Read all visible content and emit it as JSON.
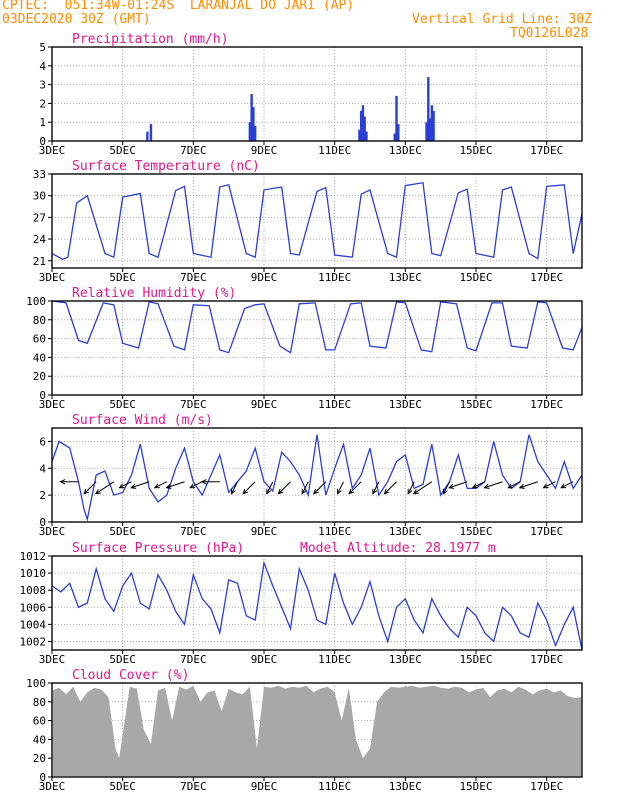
{
  "header": {
    "line1": "CPTEC:  051:34W-01:24S  LARANJAL DO JARI (AP)",
    "line2": "03DEC2020 30Z (GMT)",
    "grid_note": "Vertical Grid Line: 30Z",
    "code": "TQ0126L028"
  },
  "colors": {
    "header": "#ff8c00",
    "panel_title": "#e0198c",
    "line": "#2a3fd6",
    "bar": "#2a3fd6",
    "cloud": "#a8a8a8",
    "grid": "#9a9a9a",
    "arrow": "#000000"
  },
  "x_tick_labels": [
    "3DEC",
    "5DEC",
    "7DEC",
    "9DEC",
    "11DEC",
    "13DEC",
    "15DEC",
    "17DEC"
  ],
  "chart_data": [
    {
      "type": "bar",
      "title": "Precipitation (mm/h)",
      "ylim": [
        0,
        5
      ],
      "yticks": [
        0,
        1,
        2,
        3,
        4,
        5
      ],
      "grid": true,
      "x": [
        5.7,
        5.8,
        8.6,
        8.65,
        8.7,
        8.75,
        11.7,
        11.75,
        11.8,
        11.85,
        11.9,
        12.7,
        12.75,
        12.8,
        13.6,
        13.65,
        13.7,
        13.75,
        13.8
      ],
      "values": [
        0.5,
        0.9,
        1.0,
        2.5,
        1.8,
        0.8,
        0.6,
        1.6,
        1.9,
        1.3,
        0.5,
        0.4,
        2.4,
        0.9,
        1.0,
        3.4,
        1.2,
        1.9,
        1.6
      ]
    },
    {
      "type": "line",
      "title": "Surface Temperature (nC)",
      "ylim": [
        20,
        33
      ],
      "yticks": [
        21,
        24,
        27,
        30,
        33
      ],
      "grid": true,
      "x": [
        3.0,
        3.3,
        3.45,
        3.7,
        4.0,
        4.5,
        4.75,
        5.0,
        5.5,
        5.75,
        6.0,
        6.5,
        6.75,
        7.0,
        7.5,
        7.75,
        8.0,
        8.5,
        8.75,
        9.0,
        9.5,
        9.75,
        10.0,
        10.5,
        10.75,
        11.0,
        11.5,
        11.75,
        12.0,
        12.5,
        12.75,
        13.0,
        13.5,
        13.75,
        14.0,
        14.5,
        14.75,
        15.0,
        15.5,
        15.75,
        16.0,
        16.5,
        16.75,
        17.0,
        17.5,
        17.75,
        18.0
      ],
      "values": [
        22,
        21.2,
        21.5,
        29,
        30,
        22,
        21.5,
        29.8,
        30.3,
        22,
        21.5,
        30.7,
        31.3,
        22,
        21.5,
        31.2,
        31.5,
        22,
        21.5,
        30.8,
        31.2,
        22,
        21.8,
        30.6,
        31.1,
        21.8,
        21.5,
        30.2,
        30.8,
        22,
        21.5,
        31.4,
        31.8,
        22,
        21.7,
        30.4,
        30.9,
        22,
        21.5,
        30.8,
        31.2,
        22,
        21.3,
        31.3,
        31.5,
        22,
        27.5
      ]
    },
    {
      "type": "line",
      "title": "Relative Humidity (%)",
      "ylim": [
        0,
        100
      ],
      "yticks": [
        0,
        20,
        40,
        60,
        80,
        100
      ],
      "grid": true,
      "x": [
        3.0,
        3.4,
        3.75,
        4.0,
        4.45,
        4.75,
        5.0,
        5.45,
        5.75,
        6.0,
        6.45,
        6.75,
        7.0,
        7.45,
        7.75,
        8.0,
        8.45,
        8.75,
        9.0,
        9.45,
        9.75,
        10.0,
        10.45,
        10.75,
        11.0,
        11.45,
        11.75,
        12.0,
        12.45,
        12.75,
        13.0,
        13.45,
        13.75,
        14.0,
        14.45,
        14.75,
        15.0,
        15.45,
        15.75,
        16.0,
        16.45,
        16.75,
        17.0,
        17.45,
        17.75,
        18.0
      ],
      "values": [
        100,
        98,
        58,
        55,
        98,
        96,
        55,
        50,
        99,
        97,
        52,
        48,
        96,
        95,
        48,
        45,
        92,
        96,
        97,
        52,
        45,
        97,
        98,
        48,
        48,
        97,
        98,
        52,
        50,
        99,
        98,
        48,
        46,
        99,
        97,
        50,
        47,
        98,
        98,
        52,
        50,
        99,
        98,
        50,
        48,
        72
      ]
    },
    {
      "type": "line",
      "title": "Surface Wind (m/s)",
      "ylim": [
        0,
        7
      ],
      "yticks": [
        0,
        2,
        4,
        6
      ],
      "grid": true,
      "x": [
        3.0,
        3.2,
        3.5,
        3.75,
        3.9,
        4.0,
        4.25,
        4.5,
        4.75,
        5.0,
        5.25,
        5.5,
        5.75,
        6.0,
        6.25,
        6.5,
        6.75,
        7.0,
        7.25,
        7.5,
        7.75,
        8.0,
        8.25,
        8.5,
        8.75,
        9.0,
        9.25,
        9.5,
        9.75,
        10.0,
        10.25,
        10.5,
        10.75,
        11.0,
        11.25,
        11.5,
        11.75,
        12.0,
        12.25,
        12.5,
        12.75,
        13.0,
        13.25,
        13.5,
        13.75,
        14.0,
        14.25,
        14.5,
        14.75,
        15.0,
        15.25,
        15.5,
        15.75,
        16.0,
        16.25,
        16.5,
        16.75,
        17.0,
        17.25,
        17.5,
        17.75,
        18.0
      ],
      "values": [
        4.5,
        6.0,
        5.5,
        3.0,
        1.0,
        0.2,
        3.5,
        3.8,
        2.0,
        2.2,
        3.5,
        5.8,
        2.5,
        1.5,
        2.0,
        4.0,
        5.5,
        3.0,
        2.0,
        3.5,
        5.0,
        2.2,
        3.0,
        3.8,
        5.5,
        3.0,
        2.3,
        5.2,
        4.5,
        3.5,
        2.0,
        6.5,
        2.0,
        4.0,
        5.8,
        2.5,
        3.5,
        5.5,
        2.0,
        3.0,
        4.5,
        5.0,
        2.5,
        2.8,
        5.8,
        2.0,
        3.0,
        5.0,
        2.5,
        2.5,
        3.0,
        6.0,
        3.5,
        2.5,
        3.0,
        6.5,
        4.5,
        3.5,
        2.5,
        4.5,
        2.5,
        3.5
      ],
      "arrows_x": [
        3.75,
        4.25,
        4.75,
        5.25,
        5.75,
        6.25,
        6.75,
        7.25,
        7.75,
        8.25,
        8.75,
        9.25,
        9.75,
        10.25,
        10.75,
        11.25,
        11.75,
        12.25,
        12.75,
        13.25,
        13.75,
        14.25,
        14.75,
        15.25,
        15.75,
        16.25,
        16.75,
        17.25,
        17.75
      ],
      "arrows_u": [
        -3,
        -2,
        -3,
        -2,
        -3,
        -2,
        -3,
        -2,
        -3,
        -1,
        -2,
        -1,
        -2,
        -1,
        -2,
        -1,
        -2,
        -1,
        -2,
        -1,
        -3,
        -1,
        -3,
        -2,
        -3,
        -2,
        -3,
        -2,
        -2
      ],
      "arrows_v": [
        0,
        -2,
        -2,
        -1,
        -1,
        -1,
        -1,
        -1,
        0,
        -2,
        -2,
        -2,
        -2,
        -2,
        -2,
        -2,
        -2,
        -2,
        -2,
        -2,
        -2,
        -2,
        -1,
        -1,
        -1,
        -1,
        -1,
        -1,
        -1
      ]
    },
    {
      "type": "line",
      "title": "Surface Pressure (hPa)",
      "subtitle": "Model Altitude: 28.1977 m",
      "ylim": [
        1001,
        1012
      ],
      "yticks": [
        1002,
        1004,
        1006,
        1008,
        1010,
        1012
      ],
      "grid": true,
      "x": [
        3.0,
        3.25,
        3.5,
        3.75,
        4.0,
        4.25,
        4.5,
        4.75,
        5.0,
        5.25,
        5.5,
        5.75,
        6.0,
        6.25,
        6.5,
        6.75,
        7.0,
        7.25,
        7.5,
        7.75,
        8.0,
        8.25,
        8.5,
        8.75,
        9.0,
        9.25,
        9.5,
        9.75,
        10.0,
        10.25,
        10.5,
        10.75,
        11.0,
        11.25,
        11.5,
        11.75,
        12.0,
        12.25,
        12.5,
        12.75,
        13.0,
        13.25,
        13.5,
        13.75,
        14.0,
        14.25,
        14.5,
        14.75,
        15.0,
        15.25,
        15.5,
        15.75,
        16.0,
        16.25,
        16.5,
        16.75,
        17.0,
        17.25,
        17.5,
        17.75,
        18.0
      ],
      "values": [
        1008.5,
        1007.8,
        1008.8,
        1006.0,
        1006.5,
        1010.5,
        1007.0,
        1005.5,
        1008.5,
        1010.0,
        1006.5,
        1005.8,
        1009.8,
        1008.0,
        1005.5,
        1004.0,
        1009.8,
        1007.0,
        1005.8,
        1003.0,
        1009.2,
        1008.8,
        1005.0,
        1004.5,
        1011.2,
        1008.5,
        1006.0,
        1003.5,
        1010.5,
        1008.0,
        1004.5,
        1004.0,
        1010.0,
        1006.5,
        1004.0,
        1006.0,
        1009.0,
        1005.0,
        1002.0,
        1006.0,
        1007.0,
        1004.5,
        1003.0,
        1007.0,
        1005.0,
        1003.5,
        1002.5,
        1006.0,
        1005.0,
        1003.0,
        1002.0,
        1006.0,
        1005.0,
        1003.0,
        1002.5,
        1006.5,
        1004.5,
        1001.5,
        1004.0,
        1006.0,
        1001.0
      ],
      "ylabel": ""
    },
    {
      "type": "area",
      "title": "Cloud Cover (%)",
      "ylim": [
        0,
        100
      ],
      "yticks": [
        0,
        20,
        40,
        60,
        80,
        100
      ],
      "grid": true,
      "x": [
        3.0,
        3.2,
        3.4,
        3.6,
        3.8,
        4.0,
        4.2,
        4.4,
        4.6,
        4.8,
        4.9,
        5.0,
        5.2,
        5.4,
        5.6,
        5.8,
        6.0,
        6.2,
        6.4,
        6.6,
        6.8,
        7.0,
        7.2,
        7.4,
        7.6,
        7.8,
        8.0,
        8.2,
        8.4,
        8.6,
        8.8,
        9.0,
        9.2,
        9.4,
        9.6,
        9.8,
        10.0,
        10.2,
        10.4,
        10.6,
        10.8,
        11.0,
        11.2,
        11.4,
        11.6,
        11.8,
        12.0,
        12.2,
        12.4,
        12.6,
        12.8,
        13.0,
        13.2,
        13.4,
        13.6,
        13.8,
        14.0,
        14.2,
        14.4,
        14.6,
        14.8,
        15.0,
        15.2,
        15.4,
        15.6,
        15.8,
        16.0,
        16.2,
        16.4,
        16.6,
        16.8,
        17.0,
        17.2,
        17.4,
        17.6,
        17.8,
        18.0
      ],
      "values": [
        92,
        95,
        88,
        96,
        80,
        90,
        95,
        93,
        85,
        30,
        20,
        45,
        96,
        94,
        50,
        35,
        92,
        95,
        60,
        96,
        93,
        97,
        80,
        90,
        92,
        70,
        94,
        90,
        88,
        96,
        30,
        96,
        95,
        97,
        94,
        96,
        95,
        97,
        90,
        94,
        96,
        90,
        60,
        95,
        40,
        20,
        30,
        80,
        90,
        96,
        95,
        96,
        97,
        95,
        96,
        97,
        95,
        94,
        96,
        95,
        90,
        93,
        95,
        85,
        92,
        94,
        90,
        96,
        93,
        88,
        92,
        94,
        90,
        92,
        86,
        84,
        85
      ]
    }
  ]
}
